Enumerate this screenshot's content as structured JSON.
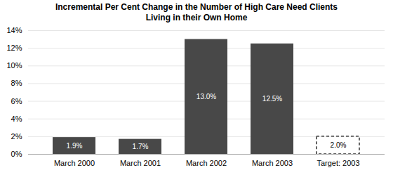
{
  "chart_data": {
    "type": "bar",
    "title": "Incremental Per Cent Change in the Number of High Care Need Clients\nLiving in their Own Home",
    "categories": [
      "March 2000",
      "March 2001",
      "March 2002",
      "March 2003",
      "Target: 2003"
    ],
    "values": [
      1.9,
      1.7,
      13.0,
      12.5,
      2.0
    ],
    "value_labels": [
      "1.9%",
      "1.7%",
      "13.0%",
      "12.5%",
      "2.0%"
    ],
    "colors": [
      "#484848",
      "#484848",
      "#484848",
      "#484848",
      "none"
    ],
    "ylim": [
      0,
      14
    ],
    "yticks": [
      {
        "value": 0,
        "label": "0%"
      },
      {
        "value": 2,
        "label": "2%"
      },
      {
        "value": 4,
        "label": "4%"
      },
      {
        "value": 6,
        "label": "6%"
      },
      {
        "value": 8,
        "label": "8%"
      },
      {
        "value": 10,
        "label": "10%"
      },
      {
        "value": 12,
        "label": "12%"
      },
      {
        "value": 14,
        "label": "14%"
      }
    ],
    "grid": true,
    "data_labels": true
  }
}
